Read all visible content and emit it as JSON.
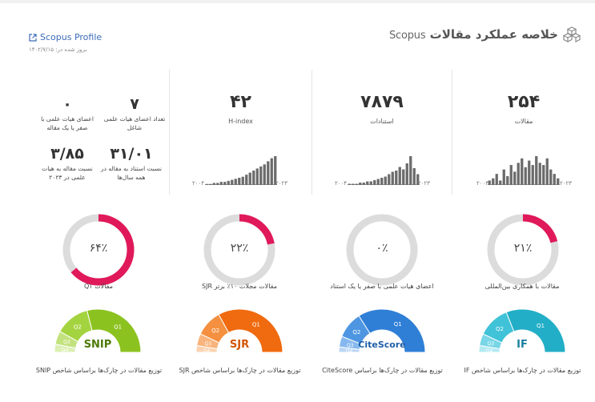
{
  "header": {
    "title": "خلاصه عملکرد مقالات",
    "title_en": "Scopus",
    "profile_link": "Scopus Profile",
    "updated": "بروز شده در: ۱۴۰۲/۷/۱۵"
  },
  "stats": [
    {
      "id": "articles",
      "value": "۲۵۴",
      "label": "مقالات",
      "x_start": "۲۰۰۴",
      "x_end": "۲۰۲۳",
      "bars": [
        2,
        3,
        5,
        2,
        7,
        4,
        9,
        6,
        10,
        12,
        8,
        11,
        9,
        13,
        10,
        9,
        12,
        7,
        5,
        3
      ]
    },
    {
      "id": "citations",
      "value": "۷۸۷۹",
      "label": "استنادات",
      "x_start": "۲۰۰۴",
      "x_end": "۲۰۲۳",
      "bars": [
        1,
        1,
        1,
        2,
        2,
        3,
        3,
        4,
        5,
        6,
        7,
        9,
        11,
        12,
        15,
        13,
        18,
        24,
        14,
        9
      ]
    },
    {
      "id": "hindex",
      "value": "۴۲",
      "label": "H-index",
      "x_start": "۲۰۰۴",
      "x_end": "۲۰۲۳",
      "bars": [
        1,
        1,
        2,
        2,
        3,
        3,
        4,
        5,
        6,
        7,
        8,
        10,
        12,
        14,
        16,
        18,
        20,
        23,
        26,
        28
      ]
    }
  ],
  "mini_stats": [
    {
      "value": "۷",
      "label": "تعداد اعضای هیات علمی شاغل"
    },
    {
      "value": "۰",
      "label": "اعضای هیات علمی با صفر یا یک مقاله"
    },
    {
      "value": "۳۱/۰۱",
      "label": "نسبت استناد به مقاله در همه سال‌ها"
    },
    {
      "value": "۳/۸۵",
      "label": "نسبت مقاله به هیات علمی در ۲۰۲۳"
    }
  ],
  "rings": [
    {
      "id": "intl",
      "percent": 21,
      "display": "۲۱٪",
      "label": "مقالات با همکاری بین‌المللی",
      "color": "#e0195a"
    },
    {
      "id": "zero",
      "percent": 0,
      "display": "۰٪",
      "label": "اعضای هیات علمی با صفر یا یک استناد",
      "color": "#e0195a"
    },
    {
      "id": "sjr",
      "percent": 22,
      "display": "۲۲٪",
      "label": "مقالات مجلات ۱۰٪ برتر SJR",
      "color": "#e0195a"
    },
    {
      "id": "q1",
      "percent": 64,
      "display": "۶۴٪",
      "label": "مقالات Q۱",
      "color": "#e0195a"
    }
  ],
  "gauges": [
    {
      "id": "if",
      "name": "IF",
      "label": "توزیع مقالات در چارک‌ها براساس شاخص IF",
      "colors": [
        "#23aec7",
        "#40c2d8",
        "#78d6e6",
        "#b2e9f2"
      ],
      "shares": [
        0.62,
        0.24,
        0.09,
        0.05
      ],
      "text_color": "#1a7fa0"
    },
    {
      "id": "citescore",
      "name": "CiteScore",
      "label": "توزیع مقالات در چارک‌ها براساس CiteScore",
      "colors": [
        "#2f7fd6",
        "#4e96e2",
        "#86b8ee",
        "#bcd7f6"
      ],
      "shares": [
        0.68,
        0.2,
        0.08,
        0.04
      ],
      "text_color": "#1f5fa8"
    },
    {
      "id": "sjr",
      "name": "SJR",
      "label": "توزیع مقالات در چارک‌ها براساس شاخص SJR",
      "colors": [
        "#f06a0f",
        "#f4903f",
        "#f8b47c",
        "#fbd3b0"
      ],
      "shares": [
        0.66,
        0.2,
        0.09,
        0.05
      ],
      "text_color": "#d45400"
    },
    {
      "id": "snip",
      "name": "SNIP",
      "label": "توزیع مقالات در چارک‌ها براساس شاخص SNIP",
      "colors": [
        "#8cc21f",
        "#a4d340",
        "#c3e27e",
        "#dcefb4"
      ],
      "shares": [
        0.58,
        0.26,
        0.1,
        0.06
      ],
      "text_color": "#4d7a06"
    }
  ],
  "quartile_labels": [
    "Q1",
    "Q2",
    "Q3",
    "Q4"
  ]
}
